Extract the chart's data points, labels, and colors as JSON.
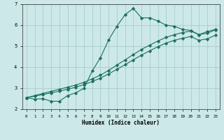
{
  "xlabel": "Humidex (Indice chaleur)",
  "bg_color": "#cce8e8",
  "grid_color": "#aacccc",
  "line_color": "#1a7060",
  "xlim": [
    -0.5,
    23.5
  ],
  "ylim": [
    2,
    7
  ],
  "xticks": [
    0,
    1,
    2,
    3,
    4,
    5,
    6,
    7,
    8,
    9,
    10,
    11,
    12,
    13,
    14,
    15,
    16,
    17,
    18,
    19,
    20,
    21,
    22,
    23
  ],
  "yticks": [
    2,
    3,
    4,
    5,
    6,
    7
  ],
  "line1_x": [
    0,
    1,
    2,
    3,
    4,
    5,
    6,
    7,
    8,
    9,
    10,
    11,
    12,
    13,
    14,
    15,
    16,
    17,
    18,
    19,
    20,
    21,
    22,
    23
  ],
  "line1_y": [
    2.55,
    2.48,
    2.5,
    2.38,
    2.38,
    2.65,
    2.78,
    3.0,
    3.82,
    4.45,
    5.3,
    5.95,
    6.5,
    6.8,
    6.35,
    6.35,
    6.2,
    6.0,
    5.95,
    5.8,
    5.75,
    5.55,
    5.7,
    5.8
  ],
  "line2_x": [
    0,
    1,
    2,
    3,
    4,
    5,
    6,
    7,
    8,
    9,
    10,
    11,
    12,
    13,
    14,
    15,
    16,
    17,
    18,
    19,
    20,
    21,
    22,
    23
  ],
  "line2_y": [
    2.55,
    2.65,
    2.75,
    2.85,
    2.95,
    3.05,
    3.15,
    3.28,
    3.45,
    3.62,
    3.85,
    4.1,
    4.35,
    4.6,
    4.85,
    5.05,
    5.25,
    5.42,
    5.55,
    5.65,
    5.72,
    5.55,
    5.62,
    5.78
  ],
  "line3_x": [
    0,
    1,
    2,
    3,
    4,
    5,
    6,
    7,
    8,
    9,
    10,
    11,
    12,
    13,
    14,
    15,
    16,
    17,
    18,
    19,
    20,
    21,
    22,
    23
  ],
  "line3_y": [
    2.55,
    2.62,
    2.7,
    2.78,
    2.86,
    2.95,
    3.05,
    3.17,
    3.32,
    3.48,
    3.68,
    3.9,
    4.12,
    4.35,
    4.58,
    4.78,
    4.98,
    5.15,
    5.28,
    5.38,
    5.46,
    5.28,
    5.35,
    5.52
  ]
}
